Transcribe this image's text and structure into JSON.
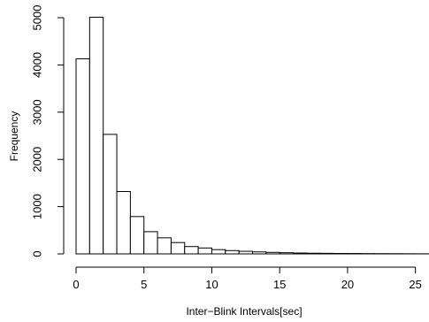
{
  "chart_data": {
    "type": "bar",
    "subtype": "histogram",
    "title": "",
    "xlabel": "Inter−Blink Intervals[sec]",
    "ylabel": "Frequency",
    "bin_width": 1,
    "bin_starts": [
      0,
      1,
      2,
      3,
      4,
      5,
      6,
      7,
      8,
      9,
      10,
      11,
      12,
      13,
      14,
      15,
      16,
      17,
      18,
      19,
      20,
      21,
      22,
      23,
      24,
      25
    ],
    "values": [
      4130,
      5010,
      2530,
      1320,
      790,
      470,
      340,
      240,
      155,
      125,
      90,
      70,
      55,
      42,
      32,
      25,
      18,
      14,
      12,
      9,
      8,
      6,
      5,
      4,
      3,
      2
    ],
    "xlim": [
      0,
      26
    ],
    "ylim": [
      0,
      5000
    ],
    "x_ticks": [
      0,
      5,
      10,
      15,
      20,
      25
    ],
    "x_tick_labels": [
      "0",
      "5",
      "10",
      "15",
      "20",
      "25"
    ],
    "y_ticks": [
      0,
      1000,
      2000,
      3000,
      4000,
      5000
    ],
    "y_tick_labels": [
      "0",
      "1000",
      "2000",
      "3000",
      "4000",
      "5000"
    ],
    "bar_fill": "#ffffff",
    "bar_stroke": "#000000",
    "grid": false,
    "legend": "none"
  }
}
